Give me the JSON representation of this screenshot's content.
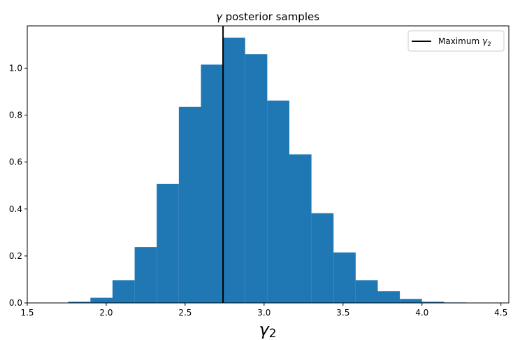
{
  "chart_data": {
    "type": "bar",
    "title_prefix": "γ",
    "title_rest": " posterior samples",
    "xlabel_base": "γ",
    "xlabel_sub": "2",
    "xlim": [
      1.5,
      4.55
    ],
    "ylim": [
      0,
      1.18
    ],
    "xticks": [
      1.5,
      2.0,
      2.5,
      3.0,
      3.5,
      4.0,
      4.5
    ],
    "xtick_labels": [
      "1.5",
      "2.0",
      "2.5",
      "3.0",
      "3.5",
      "4.0",
      "4.5"
    ],
    "yticks": [
      0.0,
      0.2,
      0.4,
      0.6,
      0.8,
      1.0
    ],
    "ytick_labels": [
      "0.0",
      "0.2",
      "0.4",
      "0.6",
      "0.8",
      "1.0"
    ],
    "bin_edges": [
      1.76,
      1.9,
      2.04,
      2.18,
      2.32,
      2.46,
      2.6,
      2.74,
      2.88,
      3.02,
      3.16,
      3.3,
      3.44,
      3.58,
      3.72,
      3.86,
      4.0,
      4.14,
      4.28
    ],
    "values": [
      0.005,
      0.022,
      0.097,
      0.238,
      0.507,
      0.835,
      1.015,
      1.13,
      1.06,
      0.862,
      0.633,
      0.382,
      0.215,
      0.097,
      0.05,
      0.017,
      0.005,
      0.002
    ],
    "bar_color": "#1f77b4",
    "vline": {
      "x": 2.74,
      "color": "#000000"
    },
    "legend": {
      "label_text": "Maximum ",
      "label_symbol": "γ",
      "label_sub": "2",
      "position": "top-right"
    }
  }
}
